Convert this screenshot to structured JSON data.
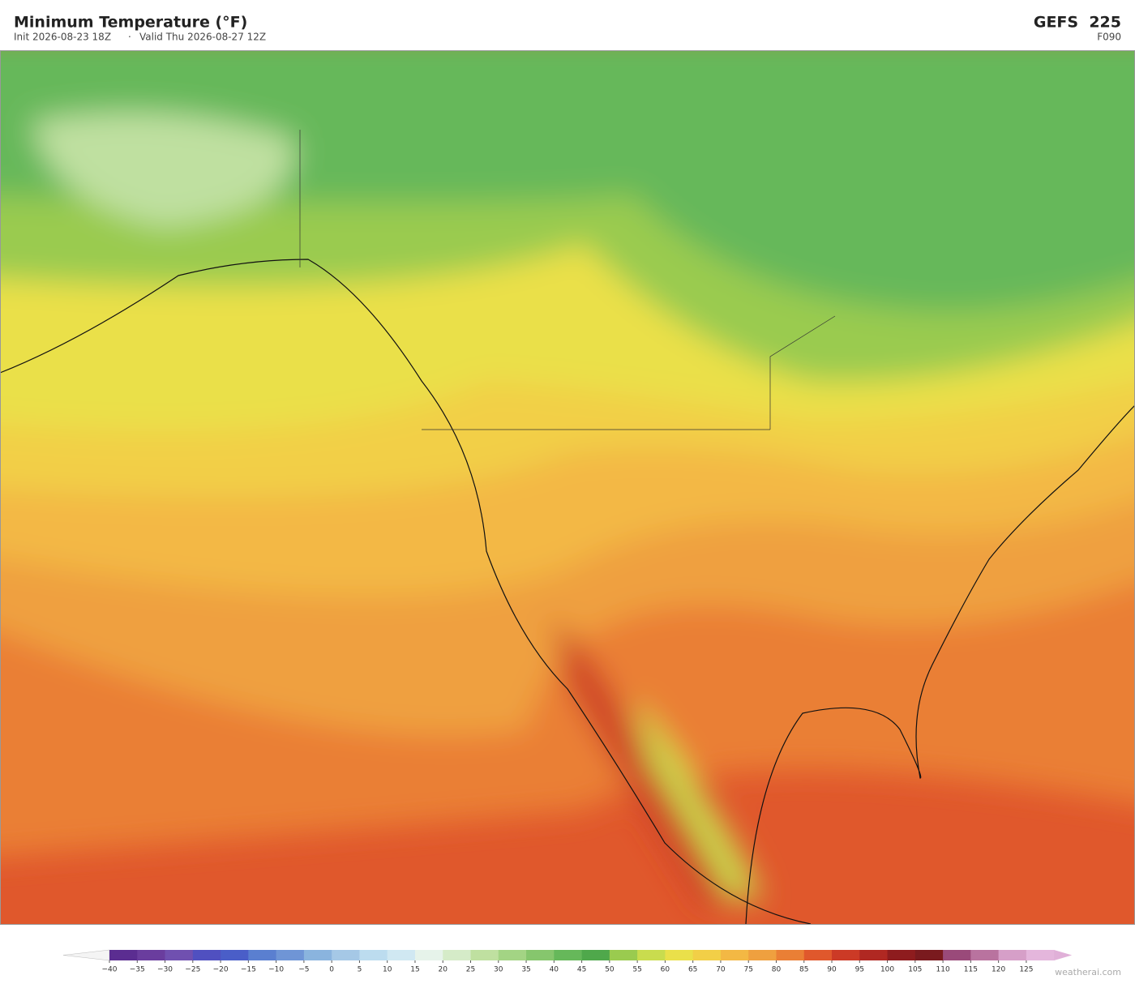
{
  "header": {
    "title": "Minimum Temperature  (°F)",
    "init": "Init 2026-08-23 18Z",
    "separator": "·",
    "valid": "Valid Thu 2026-08-27 12Z",
    "model": "GEFS  225",
    "forecast_hour": "F090"
  },
  "colorbar": {
    "ticks": [
      {
        "value": -40,
        "label": "−40"
      },
      {
        "value": -35,
        "label": "−35"
      },
      {
        "value": -30,
        "label": "−30"
      },
      {
        "value": -25,
        "label": "−25"
      },
      {
        "value": -20,
        "label": "−20"
      },
      {
        "value": -15,
        "label": "−15"
      },
      {
        "value": -10,
        "label": "−10"
      },
      {
        "value": -5,
        "label": "−5"
      },
      0,
      5,
      10,
      15,
      20,
      25,
      30,
      35,
      40,
      45,
      50,
      55,
      60,
      65,
      70,
      75,
      80,
      85,
      90,
      95,
      100,
      105,
      110,
      115,
      120,
      125
    ],
    "colors": [
      "#5b2d91",
      "#6a3d9e",
      "#7050b0",
      "#5050c0",
      "#4a5ec8",
      "#5a7fd0",
      "#6f95d6",
      "#8ab4de",
      "#a5c8e6",
      "#bcdcef",
      "#d0e8f2",
      "#e6f3ea",
      "#d5ebc8",
      "#bfe0a0",
      "#a3d484",
      "#86c66d",
      "#66b85a",
      "#4fa84b",
      "#9acb4f",
      "#c9dc4e",
      "#eae04a",
      "#f2cf47",
      "#f3b844",
      "#efa03f",
      "#ea7f35",
      "#e0582c",
      "#cc3a26",
      "#b02822",
      "#8e1c1e",
      "#7a1a1e",
      "#9a4a7a",
      "#b9739f",
      "#d69fc8",
      "#e4b6dc"
    ],
    "under_color": "#f4f4f4",
    "over_color": "#e0b0d8"
  },
  "footer": {
    "credit": "weatherai.com"
  }
}
